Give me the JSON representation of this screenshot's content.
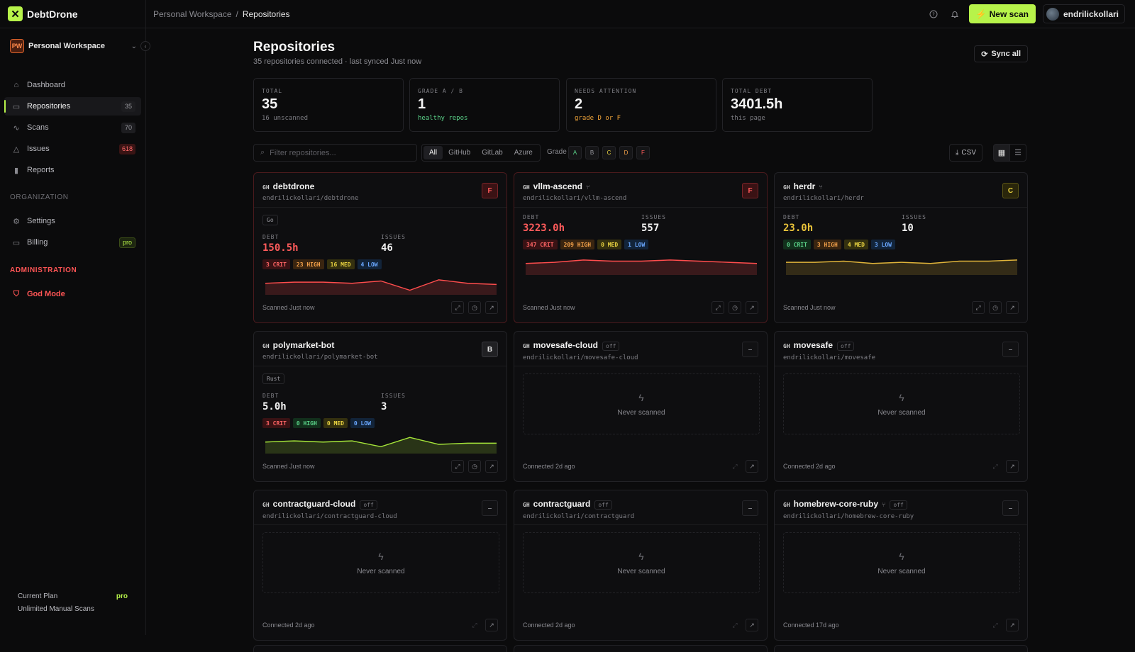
{
  "app": {
    "name": "DebtDrone",
    "logo_glyph": "✕",
    "accent": "#b7f34a"
  },
  "breadcrumb": {
    "workspace": "Personal Workspace",
    "separator": "/",
    "current": "Repositories"
  },
  "topbar": {
    "new_scan_label": "New scan",
    "user_name": "endrilickollari"
  },
  "sidebar": {
    "workspace_badge": "PW",
    "workspace_name": "Personal Workspace",
    "items": [
      {
        "label": "Dashboard",
        "icon": "home-icon"
      },
      {
        "label": "Repositories",
        "icon": "repo-icon",
        "count": "35"
      },
      {
        "label": "Scans",
        "icon": "activity-icon",
        "count": "70"
      },
      {
        "label": "Issues",
        "icon": "warning-icon",
        "count": "618"
      },
      {
        "label": "Reports",
        "icon": "bar-chart-icon"
      }
    ],
    "org_section": "ORGANIZATION",
    "org_items": [
      {
        "label": "Settings",
        "icon": "gear-icon"
      },
      {
        "label": "Billing",
        "icon": "card-icon",
        "badge": "pro"
      }
    ],
    "admin_section": "ADMINISTRATION",
    "admin_items": [
      {
        "label": "God Mode",
        "icon": "shield-icon"
      }
    ],
    "plan": {
      "label": "Current Plan",
      "value": "pro",
      "detail": "Unlimited Manual Scans"
    }
  },
  "page": {
    "title": "Repositories",
    "subtitle": "35 repositories connected · last synced Just now",
    "sync_all_label": "Sync all"
  },
  "stats": [
    {
      "label": "TOTAL",
      "value": "35",
      "sub": "16 unscanned"
    },
    {
      "label": "GRADE A / B",
      "value": "1",
      "sub": "healthy repos"
    },
    {
      "label": "NEEDS ATTENTION",
      "value": "2",
      "sub": "grade D or F"
    },
    {
      "label": "TOTAL DEBT",
      "value": "3401.5h",
      "sub": "this page"
    }
  ],
  "filters": {
    "search_placeholder": "Filter repositories...",
    "providers": [
      "All",
      "GitHub",
      "GitLab",
      "Azure"
    ],
    "grade_label": "Grade",
    "grades": [
      {
        "g": "A",
        "color": "#5bd48a"
      },
      {
        "g": "B",
        "color": "#9a9aa0"
      },
      {
        "g": "C",
        "color": "#e8d240"
      },
      {
        "g": "D",
        "color": "#f3a14a"
      },
      {
        "g": "F",
        "color": "#ff5b5b"
      }
    ],
    "csv_label": "CSV"
  },
  "repos": [
    {
      "name": "debtdrone",
      "path": "endrilickollari/debtdrone",
      "grade": "F",
      "lang": "Go",
      "debt": "150.5h",
      "issues": "46",
      "crit": "3 CRIT",
      "high": "23 HIGH",
      "med": "16 MED",
      "low": "4 LOW",
      "footer": "Scanned Just now",
      "trend": [
        10,
        11,
        11,
        10,
        12,
        4,
        13,
        10,
        9
      ]
    },
    {
      "name": "vllm-ascend",
      "path": "endrilickollari/vllm-ascend",
      "grade": "F",
      "debt": "3223.0h",
      "issues": "557",
      "crit": "347 CRIT",
      "high": "209 HIGH",
      "med": "0 MED",
      "low": "1 LOW",
      "footer": "Scanned Just now",
      "trend": [
        10,
        11,
        13,
        12,
        12,
        13,
        12,
        11,
        10
      ]
    },
    {
      "name": "herdr",
      "path": "endrilickollari/herdr",
      "grade": "C",
      "debt": "23.0h",
      "issues": "10",
      "crit": "0 CRIT",
      "high": "3 HIGH",
      "med": "4 MED",
      "low": "3 LOW",
      "footer": "Scanned Just now",
      "trend": [
        11,
        11,
        12,
        10,
        11,
        10,
        12,
        12,
        13
      ]
    },
    {
      "name": "polymarket-bot",
      "path": "endrilickollari/polymarket-bot",
      "grade": "B",
      "lang": "Rust",
      "debt": "5.0h",
      "issues": "3",
      "crit": "3 CRIT",
      "high": "0 HIGH",
      "med": "0 MED",
      "low": "0 LOW",
      "footer": "Scanned Just now",
      "trend": [
        10,
        11,
        10,
        11,
        6,
        14,
        8,
        9,
        9
      ]
    },
    {
      "name": "movesafe-cloud",
      "path": "endrilickollari/movesafe-cloud",
      "off": "off",
      "never": "Never scanned",
      "footer": "Connected 2d ago"
    },
    {
      "name": "movesafe",
      "path": "endrilickollari/movesafe",
      "off": "off",
      "never": "Never scanned",
      "footer": "Connected 2d ago"
    },
    {
      "name": "contractguard-cloud",
      "path": "endrilickollari/contractguard-cloud",
      "off": "off",
      "never": "Never scanned",
      "footer": "Connected 2d ago"
    },
    {
      "name": "contractguard",
      "path": "endrilickollari/contractguard",
      "off": "off",
      "never": "Never scanned",
      "footer": "Connected 2d ago"
    },
    {
      "name": "homebrew-core-ruby",
      "path": "endrilickollari/homebrew-core-ruby",
      "off": "off",
      "never": "Never scanned",
      "footer": "Connected 17d ago"
    }
  ],
  "labels": {
    "debt": "DEBT",
    "issues": "ISSUES",
    "gh": "GH",
    "grade_none": "–"
  }
}
